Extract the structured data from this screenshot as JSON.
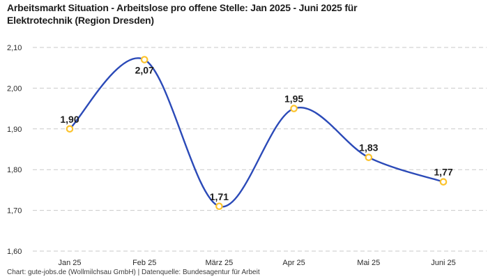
{
  "header": {
    "title": "Arbeitsmarkt Situation - Arbeitslose pro offene Stelle: Jan 2025 - Juni 2025 für\nElektrotechnik (Region Dresden)"
  },
  "footer": {
    "text": "Chart: gute-jobs.de (Wollmilchsau GmbH) | Datenquelle: Bundesagentur für Arbeit"
  },
  "chart_data": {
    "type": "line",
    "title": "Arbeitsmarkt Situation - Arbeitslose pro offene Stelle: Jan 2025 - Juni 2025 für Elektrotechnik (Region Dresden)",
    "source": "Chart: gute-jobs.de (Wollmilchsau GmbH) | Datenquelle: Bundesagentur für Arbeit",
    "categories": [
      "Jan 25",
      "Feb 25",
      "März 25",
      "Apr 25",
      "Mai 25",
      "Juni 25"
    ],
    "values": [
      1.9,
      2.07,
      1.71,
      1.95,
      1.83,
      1.77
    ],
    "value_labels": [
      "1,90",
      "2,07",
      "1,71",
      "1,95",
      "1,83",
      "1,77"
    ],
    "value_label_position": [
      "above",
      "below",
      "above",
      "above",
      "above",
      "above"
    ],
    "ylim": [
      1.6,
      2.1
    ],
    "y_axis": {
      "tick_values": [
        2.1,
        2.0,
        1.9,
        1.8,
        1.7,
        1.6
      ],
      "tick_labels": [
        "2,10",
        "2,00",
        "1,90",
        "1,80",
        "1,70",
        "1,60"
      ]
    },
    "grid": "horizontal-dashed",
    "legend": "none",
    "curve": "smooth",
    "colors": {
      "line": "#2b4ab8",
      "point_stroke": "#fcc32c",
      "point_fill": "#ffffff",
      "grid": "#c9c9c9",
      "title_text": "#1d1d1d",
      "tick_text": "#2a2a2a",
      "value_label_text": "#1d1d1d",
      "source_text": "#3a3a3a"
    }
  }
}
